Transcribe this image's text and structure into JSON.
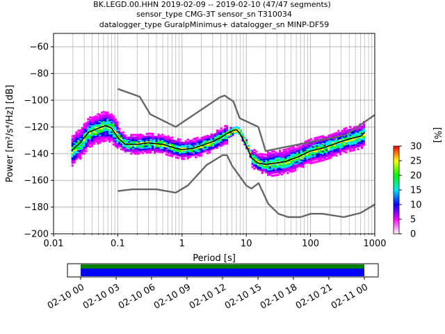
{
  "title": {
    "line1": "BK.LEGD.00.HHN   2019-02-09 -- 2019-02-10  (47/47 segments)",
    "line2": "sensor_type CMG-3T sensor_sn T310034",
    "line3": "datalogger_type GuralpMinimus+ datalogger_sn MINP-DF59"
  },
  "colorbar": {
    "label": "[%]",
    "ticks": [
      "0",
      "5",
      "10",
      "15",
      "20",
      "25",
      "30"
    ],
    "range": [
      0,
      30
    ],
    "colors": [
      "#ffffff",
      "#ff00ff",
      "#0000ff",
      "#00e5ff",
      "#00ff00",
      "#ffff00",
      "#ff0000"
    ]
  },
  "chart_data": [
    {
      "type": "heatmap",
      "xlabel": "Period [s]",
      "ylabel": "Power [m²/s⁴/Hz] [dB]",
      "xscale": "log",
      "xlim": [
        0.01,
        1000
      ],
      "ylim": [
        -200,
        -50
      ],
      "xticks": [
        "0.01",
        "0.1",
        "1",
        "10",
        "100",
        "1000"
      ],
      "yticks": [
        "−200",
        "−180",
        "−160",
        "−140",
        "−120",
        "−100",
        "−80",
        "−60"
      ],
      "grid": true,
      "series": [
        {
          "name": "mode",
          "x": [
            0.019,
            0.022,
            0.026,
            0.03,
            0.035,
            0.05,
            0.065,
            0.08,
            0.1,
            0.13,
            0.2,
            0.3,
            0.5,
            0.8,
            1,
            1.5,
            2,
            3,
            4,
            5,
            6,
            7,
            8,
            10,
            12,
            15,
            20,
            30,
            40,
            60,
            100,
            150,
            200,
            300,
            400,
            600,
            700
          ],
          "y": [
            -138,
            -135,
            -132,
            -128,
            -124,
            -121,
            -119,
            -121,
            -128,
            -133,
            -133,
            -132,
            -133,
            -136,
            -137,
            -136,
            -134,
            -131,
            -128,
            -125,
            -123,
            -122,
            -125,
            -134,
            -143,
            -147,
            -148,
            -147,
            -146,
            -143,
            -138,
            -136,
            -134,
            -131,
            -129,
            -127,
            -124
          ]
        },
        {
          "name": "high-noise model",
          "x": [
            0.1,
            0.22,
            0.32,
            0.8,
            3.8,
            4.6,
            6.3,
            7.9,
            15.4,
            20,
            354.8,
            1000
          ],
          "y": [
            -91.5,
            -97.4,
            -110.5,
            -120,
            -98,
            -96.5,
            -101,
            -113.5,
            -120,
            -138,
            -126,
            -111
          ]
        },
        {
          "name": "low-noise model",
          "x": [
            0.1,
            0.17,
            0.4,
            0.8,
            1.24,
            2.4,
            4.3,
            5,
            6,
            10,
            12,
            15.6,
            21.9,
            31.6,
            45,
            70,
            101,
            154,
            328,
            600,
            1000
          ],
          "y": [
            -168,
            -166.7,
            -166.7,
            -169.2,
            -163.7,
            -148.6,
            -141.1,
            -141.1,
            -149,
            -163.8,
            -166.2,
            -162.1,
            -177.5,
            -185,
            -187.5,
            -187.5,
            -185,
            -185,
            -187.5,
            -184.4,
            -178
          ]
        }
      ]
    },
    {
      "type": "bar",
      "title": "",
      "categories": [
        "02-10 00",
        "02-10 03",
        "02-10 06",
        "02-10 09",
        "02-10 12",
        "02-10 15",
        "02-10 18",
        "02-10 21",
        "02-11 00"
      ],
      "series": [
        {
          "name": "data coverage",
          "start": "02-10 00",
          "end": "02-11 00",
          "color": "#0000ff"
        },
        {
          "name": "processed",
          "start": "02-10 00",
          "end": "02-11 00",
          "color": "#008000"
        }
      ]
    }
  ]
}
